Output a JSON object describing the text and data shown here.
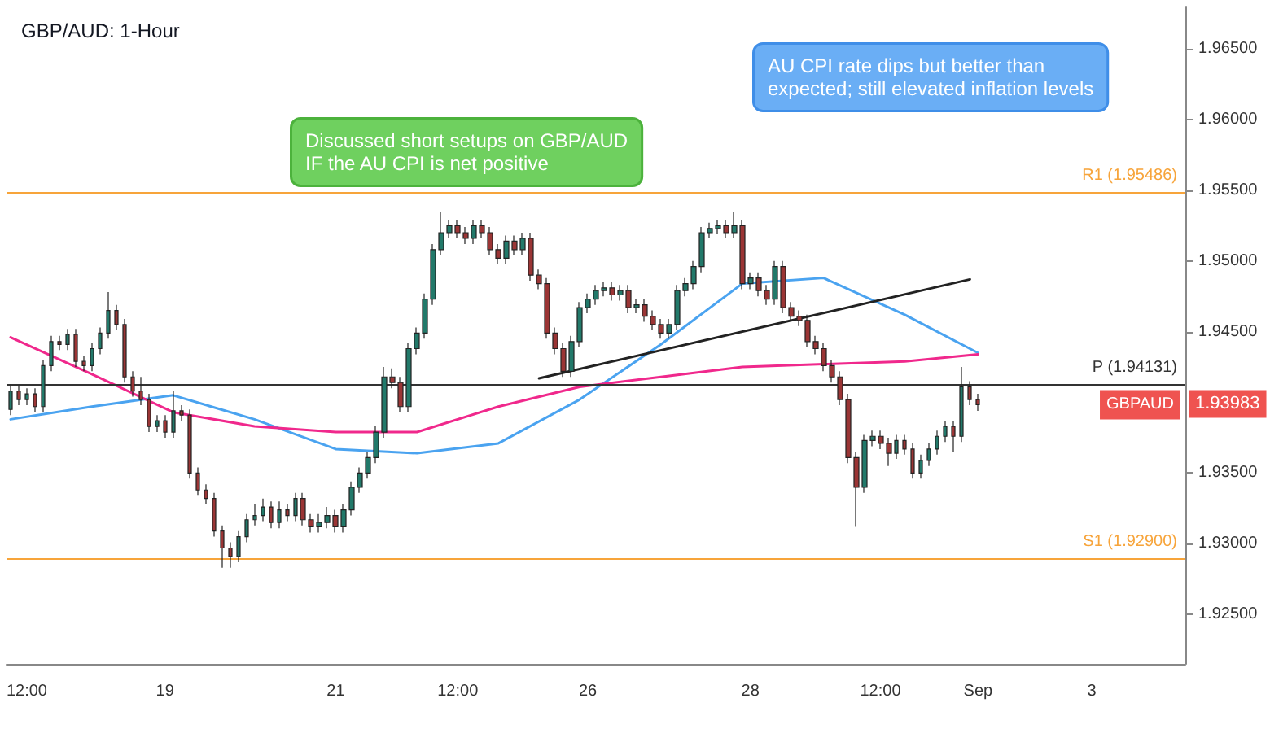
{
  "chart_data": {
    "type": "candlestick",
    "title": "GBP/AUD: 1-Hour",
    "categories": [
      null,
      null,
      "12:00",
      null,
      null,
      null,
      null,
      null,
      null,
      null,
      null,
      null,
      null,
      null,
      null,
      null,
      null,
      null,
      null,
      "19",
      null,
      null,
      null,
      null,
      null,
      null,
      null,
      null,
      null,
      null,
      null,
      null,
      null,
      null,
      null,
      null,
      null,
      null,
      null,
      null,
      "21",
      null,
      null,
      null,
      null,
      null,
      null,
      null,
      null,
      null,
      null,
      null,
      null,
      null,
      null,
      "12:00",
      null,
      null,
      null,
      null,
      null,
      null,
      null,
      null,
      null,
      null,
      null,
      null,
      null,
      null,
      null,
      "26",
      null,
      null,
      null,
      null,
      null,
      null,
      null,
      null,
      null,
      null,
      null,
      null,
      null,
      null,
      null,
      null,
      null,
      null,
      null,
      "28",
      null,
      null,
      null,
      null,
      null,
      null,
      null,
      null,
      null,
      null,
      null,
      null,
      null,
      null,
      null,
      "12:00",
      null,
      null,
      null,
      null,
      null,
      null,
      null,
      null,
      null,
      null,
      null,
      "Sep",
      null,
      null,
      null,
      null,
      null,
      null,
      null,
      null,
      null,
      null,
      null,
      null,
      null,
      "3",
      null,
      null,
      null,
      null,
      null,
      null,
      null,
      null,
      null,
      null,
      null
    ],
    "colors": [
      "#22796a",
      "#9b3535",
      "#22796a",
      "#9b3535",
      "#22796a",
      "#22796a",
      "#9b3535",
      "#22796a",
      "#9b3535",
      "#9b3535",
      "#22796a",
      "#22796a",
      "#22796a",
      "#9b3535",
      "#9b3535",
      "#9b3535",
      "#9b3535",
      "#9b3535",
      "#22796a",
      "#9b3535",
      "#22796a",
      "#9b3535",
      "#9b3535",
      "#9b3535",
      "#9b3535",
      "#9b3535",
      "#9b3535",
      "#9b3535",
      "#22796a",
      "#22796a",
      "#22796a",
      "#22796a",
      "#9b3535",
      "#22796a",
      "#9b3535",
      "#22796a",
      "#9b3535",
      "#9b3535",
      "#22796a",
      "#22796a",
      "#9b3535",
      "#22796a",
      "#22796a",
      "#22796a",
      "#22796a",
      "#22796a",
      "#22796a",
      "#9b3535",
      "#9b3535",
      "#22796a",
      "#22796a",
      "#22796a",
      "#22796a",
      "#22796a",
      "#22796a",
      "#9b3535",
      "#9b3535",
      "#22796a",
      "#9b3535",
      "#9b3535",
      "#9b3535",
      "#22796a",
      "#9b3535",
      "#22796a",
      "#9b3535",
      "#9b3535",
      "#9b3535",
      "#9b3535",
      "#9b3535",
      "#22796a",
      "#22796a",
      "#22796a",
      "#22796a",
      "#22796a",
      "#9b3535",
      "#22796a",
      "#9b3535",
      "#22796a",
      "#9b3535",
      "#9b3535",
      "#9b3535",
      "#22796a",
      "#22796a",
      "#22796a",
      "#22796a",
      "#22796a",
      "#22796a",
      "#22796a",
      "#9b3535",
      "#22796a",
      "#9b3535",
      "#22796a",
      "#9b3535",
      "#9b3535",
      "#22796a",
      "#9b3535",
      "#9b3535",
      "#9b3535",
      "#9b3535",
      "#9b3535",
      "#9b3535",
      "#9b3535",
      "#9b3535",
      "#9b3535",
      "#9b3535",
      "#22796a",
      "#22796a",
      "#9b3535",
      "#9b3535",
      "#22796a",
      "#9b3535",
      "#9b3535",
      "#22796a",
      "#22796a",
      "#22796a",
      "#22796a",
      "#9b3535",
      "#22796a",
      "#9b3535",
      "#9b3535",
      null,
      null,
      null,
      null,
      null,
      null,
      null,
      null,
      null,
      null,
      null,
      null,
      null,
      null,
      null,
      null,
      null,
      null,
      null,
      null,
      null,
      null,
      null,
      null,
      null
    ],
    "ohlc": [
      [
        1.9395,
        1.9412,
        1.9391,
        1.9408
      ],
      [
        1.9408,
        1.9412,
        1.9398,
        1.9402
      ],
      [
        1.9402,
        1.941,
        1.9398,
        1.9406
      ],
      [
        1.9406,
        1.941,
        1.9393,
        1.9397
      ],
      [
        1.9397,
        1.943,
        1.9393,
        1.9426
      ],
      [
        1.9426,
        1.9447,
        1.9422,
        1.9443
      ],
      [
        1.9443,
        1.9447,
        1.9437,
        1.9441
      ],
      [
        1.9441,
        1.9452,
        1.9437,
        1.9448
      ],
      [
        1.9448,
        1.9452,
        1.9425,
        1.9429
      ],
      [
        1.9429,
        1.9433,
        1.9422,
        1.9426
      ],
      [
        1.9426,
        1.9442,
        1.9422,
        1.9438
      ],
      [
        1.9438,
        1.9453,
        1.9434,
        1.9449
      ],
      [
        1.9449,
        1.9478,
        1.9445,
        1.9465
      ],
      [
        1.9465,
        1.9469,
        1.9451,
        1.9455
      ],
      [
        1.9455,
        1.9459,
        1.9414,
        1.9418
      ],
      [
        1.9418,
        1.9422,
        1.9404,
        1.9408
      ],
      [
        1.9408,
        1.9418,
        1.9398,
        1.9402
      ],
      [
        1.9402,
        1.9406,
        1.9379,
        1.9383
      ],
      [
        1.9383,
        1.9391,
        1.9379,
        1.9387
      ],
      [
        1.9387,
        1.9391,
        1.9375,
        1.9379
      ],
      [
        1.9379,
        1.9408,
        1.9375,
        1.9394
      ],
      [
        1.9394,
        1.9398,
        1.9387,
        1.9391
      ],
      [
        1.9391,
        1.9395,
        1.9346,
        1.935
      ],
      [
        1.935,
        1.9354,
        1.9334,
        1.9338
      ],
      [
        1.9338,
        1.9342,
        1.9328,
        1.9332
      ],
      [
        1.9332,
        1.9336,
        1.9305,
        1.9309
      ],
      [
        1.9309,
        1.9313,
        1.9283,
        1.9297
      ],
      [
        1.9297,
        1.9301,
        1.9283,
        1.9291
      ],
      [
        1.9291,
        1.9309,
        1.9287,
        1.9305
      ],
      [
        1.9305,
        1.9321,
        1.9301,
        1.9317
      ],
      [
        1.9317,
        1.9328,
        1.9313,
        1.932
      ],
      [
        1.932,
        1.9332,
        1.9316,
        1.9326
      ],
      [
        1.9326,
        1.933,
        1.9311,
        1.9315
      ],
      [
        1.9315,
        1.933,
        1.9311,
        1.9324
      ],
      [
        1.9324,
        1.9328,
        1.9316,
        1.932
      ],
      [
        1.932,
        1.9336,
        1.9316,
        1.9332
      ],
      [
        1.9332,
        1.9336,
        1.9313,
        1.9317
      ],
      [
        1.9317,
        1.9321,
        1.9308,
        1.9312
      ],
      [
        1.9312,
        1.9321,
        1.9308,
        1.9315
      ],
      [
        1.9315,
        1.9326,
        1.9311,
        1.932
      ],
      [
        1.932,
        1.9324,
        1.9308,
        1.9312
      ],
      [
        1.9312,
        1.9328,
        1.9308,
        1.9324
      ],
      [
        1.9324,
        1.9344,
        1.932,
        1.934
      ],
      [
        1.934,
        1.9354,
        1.9336,
        1.935
      ],
      [
        1.935,
        1.9365,
        1.9346,
        1.9361
      ],
      [
        1.9361,
        1.9383,
        1.9357,
        1.9379
      ],
      [
        1.9379,
        1.9425,
        1.9375,
        1.9418
      ],
      [
        1.9418,
        1.9424,
        1.941,
        1.9414
      ],
      [
        1.9414,
        1.9418,
        1.9393,
        1.9397
      ],
      [
        1.9397,
        1.9442,
        1.9393,
        1.9438
      ],
      [
        1.9438,
        1.9453,
        1.9434,
        1.9449
      ],
      [
        1.9449,
        1.9477,
        1.9445,
        1.9473
      ],
      [
        1.9473,
        1.9512,
        1.9469,
        1.9508
      ],
      [
        1.9508,
        1.9535,
        1.9504,
        1.952
      ],
      [
        1.952,
        1.9529,
        1.9516,
        1.9525
      ],
      [
        1.9525,
        1.9529,
        1.9516,
        1.952
      ],
      [
        1.952,
        1.9524,
        1.9512,
        1.9516
      ],
      [
        1.9516,
        1.9529,
        1.9512,
        1.9525
      ],
      [
        1.9525,
        1.9529,
        1.9516,
        1.952
      ],
      [
        1.952,
        1.9524,
        1.9504,
        1.9508
      ],
      [
        1.9508,
        1.9512,
        1.9498,
        1.9502
      ],
      [
        1.9502,
        1.9518,
        1.9498,
        1.9514
      ],
      [
        1.9514,
        1.9518,
        1.9504,
        1.9508
      ],
      [
        1.9508,
        1.952,
        1.9504,
        1.9516
      ],
      [
        1.9516,
        1.952,
        1.9486,
        1.949
      ],
      [
        1.949,
        1.9494,
        1.948,
        1.9484
      ],
      [
        1.9484,
        1.9488,
        1.9445,
        1.9449
      ],
      [
        1.9449,
        1.9453,
        1.9434,
        1.9438
      ],
      [
        1.9438,
        1.9442,
        1.9418,
        1.9422
      ],
      [
        1.9422,
        1.9447,
        1.9418,
        1.9443
      ],
      [
        1.9443,
        1.9471,
        1.9439,
        1.9467
      ],
      [
        1.9467,
        1.9477,
        1.9463,
        1.9473
      ],
      [
        1.9473,
        1.9483,
        1.9469,
        1.9479
      ],
      [
        1.9479,
        1.9485,
        1.9475,
        1.9481
      ],
      [
        1.9481,
        1.9485,
        1.9472,
        1.9476
      ],
      [
        1.9476,
        1.9483,
        1.9472,
        1.9479
      ],
      [
        1.9479,
        1.9483,
        1.9463,
        1.9467
      ],
      [
        1.9467,
        1.9473,
        1.9463,
        1.9469
      ],
      [
        1.9469,
        1.9473,
        1.9457,
        1.9461
      ],
      [
        1.9461,
        1.9465,
        1.9451,
        1.9455
      ],
      [
        1.9455,
        1.9459,
        1.9445,
        1.9449
      ],
      [
        1.9449,
        1.9459,
        1.9445,
        1.9455
      ],
      [
        1.9455,
        1.9483,
        1.9451,
        1.9479
      ],
      [
        1.9479,
        1.9488,
        1.9475,
        1.9484
      ],
      [
        1.9484,
        1.95,
        1.948,
        1.9496
      ],
      [
        1.9496,
        1.9524,
        1.9492,
        1.952
      ],
      [
        1.952,
        1.9527,
        1.9516,
        1.9523
      ],
      [
        1.9523,
        1.9529,
        1.9519,
        1.9525
      ],
      [
        1.9525,
        1.9529,
        1.9516,
        1.952
      ],
      [
        1.952,
        1.9535,
        1.9516,
        1.9525
      ],
      [
        1.9525,
        1.9529,
        1.948,
        1.9484
      ],
      [
        1.9484,
        1.9492,
        1.948,
        1.9488
      ],
      [
        1.9488,
        1.9492,
        1.9475,
        1.9479
      ],
      [
        1.9479,
        1.9483,
        1.9469,
        1.9473
      ],
      [
        1.9473,
        1.95,
        1.9469,
        1.9496
      ],
      [
        1.9496,
        1.95,
        1.9463,
        1.9467
      ],
      [
        1.9467,
        1.9471,
        1.9457,
        1.9461
      ],
      [
        1.9461,
        1.9465,
        1.9454,
        1.9458
      ],
      [
        1.9458,
        1.9462,
        1.9439,
        1.9443
      ],
      [
        1.9443,
        1.9447,
        1.9434,
        1.9438
      ],
      [
        1.9438,
        1.9442,
        1.9422,
        1.9426
      ],
      [
        1.9426,
        1.943,
        1.9414,
        1.9418
      ],
      [
        1.9418,
        1.9422,
        1.9398,
        1.9402
      ],
      [
        1.9402,
        1.9406,
        1.9357,
        1.9361
      ],
      [
        1.9361,
        1.9365,
        1.9312,
        1.934
      ],
      [
        1.934,
        1.9377,
        1.9336,
        1.9373
      ],
      [
        1.9373,
        1.938,
        1.9369,
        1.9376
      ],
      [
        1.9376,
        1.938,
        1.9367,
        1.9371
      ],
      [
        1.9371,
        1.9375,
        1.9355,
        1.9364
      ],
      [
        1.9364,
        1.9377,
        1.936,
        1.9373
      ],
      [
        1.9373,
        1.9377,
        1.9363,
        1.9367
      ],
      [
        1.9367,
        1.9371,
        1.9346,
        1.935
      ],
      [
        1.935,
        1.9363,
        1.9346,
        1.9359
      ],
      [
        1.9359,
        1.9371,
        1.9355,
        1.9367
      ],
      [
        1.9367,
        1.938,
        1.9363,
        1.9376
      ],
      [
        1.9376,
        1.9387,
        1.9372,
        1.9383
      ],
      [
        1.9383,
        1.9387,
        1.9365,
        1.9376
      ],
      [
        1.9376,
        1.9425,
        1.9372,
        1.9411
      ],
      [
        1.9411,
        1.9415,
        1.9398,
        1.9402
      ],
      [
        1.9402,
        1.9406,
        1.9394,
        1.93983
      ],
      null,
      null,
      null,
      null,
      null,
      null,
      null,
      null,
      null,
      null,
      null,
      null,
      null,
      null,
      null,
      null,
      null,
      null,
      null,
      null,
      null,
      null,
      null,
      null,
      null
    ],
    "series": [
      {
        "type": "line",
        "color": "#4aa3f0",
        "values": [
          1.9388,
          null,
          null,
          null,
          null,
          null,
          null,
          null,
          null,
          null,
          1.9397,
          null,
          null,
          null,
          null,
          null,
          null,
          null,
          null,
          null,
          1.9405,
          null,
          null,
          null,
          null,
          null,
          null,
          null,
          null,
          null,
          1.9388,
          null,
          null,
          null,
          null,
          null,
          null,
          null,
          null,
          null,
          1.9367,
          null,
          null,
          null,
          null,
          null,
          null,
          null,
          null,
          null,
          1.9364,
          null,
          null,
          null,
          null,
          null,
          null,
          null,
          null,
          null,
          1.9371,
          null,
          null,
          null,
          null,
          null,
          null,
          null,
          null,
          null,
          1.9402,
          null,
          null,
          null,
          null,
          null,
          null,
          null,
          null,
          null,
          1.9441,
          null,
          null,
          null,
          null,
          null,
          null,
          null,
          null,
          null,
          1.9484,
          null,
          null,
          null,
          null,
          null,
          null,
          null,
          null,
          null,
          1.9488,
          null,
          null,
          null,
          null,
          null,
          null,
          null,
          null,
          null,
          1.9462,
          null,
          null,
          null,
          null,
          null,
          null,
          null,
          null,
          1.9435,
          null,
          null,
          null,
          null,
          null,
          null,
          null,
          null,
          null,
          null,
          null,
          null,
          null,
          null,
          null,
          null,
          null,
          null,
          null,
          null,
          null,
          null,
          null,
          null,
          null
        ]
      },
      {
        "type": "line",
        "color": "#f0288c",
        "values": [
          1.9446,
          null,
          null,
          null,
          null,
          null,
          null,
          null,
          null,
          null,
          1.942,
          null,
          null,
          null,
          null,
          null,
          null,
          null,
          null,
          null,
          1.9393,
          null,
          null,
          null,
          null,
          null,
          null,
          null,
          null,
          null,
          1.9383,
          null,
          null,
          null,
          null,
          null,
          null,
          null,
          null,
          null,
          1.9379,
          null,
          null,
          null,
          null,
          null,
          null,
          null,
          null,
          null,
          1.9379,
          null,
          null,
          null,
          null,
          null,
          null,
          null,
          null,
          null,
          1.9397,
          null,
          null,
          null,
          null,
          null,
          null,
          null,
          null,
          null,
          1.9411,
          null,
          null,
          null,
          null,
          null,
          null,
          null,
          null,
          null,
          1.9418,
          null,
          null,
          null,
          null,
          null,
          null,
          null,
          null,
          null,
          1.9425,
          null,
          null,
          null,
          null,
          null,
          null,
          null,
          null,
          null,
          1.9427,
          null,
          null,
          null,
          null,
          null,
          null,
          null,
          null,
          null,
          1.9429,
          null,
          null,
          null,
          null,
          null,
          null,
          null,
          null,
          1.9434,
          null,
          null,
          null,
          null,
          null,
          null,
          null,
          null,
          null,
          null,
          null,
          null,
          null,
          null,
          null,
          null,
          null,
          null,
          null,
          null,
          null,
          null,
          null,
          null,
          null
        ]
      },
      {
        "type": "line",
        "color": "#222222",
        "values": [
          null,
          null,
          null,
          null,
          null,
          null,
          null,
          null,
          null,
          null,
          null,
          null,
          null,
          null,
          null,
          null,
          null,
          null,
          null,
          null,
          null,
          null,
          null,
          null,
          null,
          null,
          null,
          null,
          null,
          null,
          null,
          null,
          null,
          null,
          null,
          null,
          null,
          null,
          null,
          null,
          null,
          null,
          null,
          null,
          null,
          null,
          null,
          null,
          null,
          null,
          null,
          null,
          null,
          null,
          null,
          null,
          null,
          null,
          null,
          null,
          null,
          null,
          null,
          null,
          null,
          1.9417,
          null,
          null,
          null,
          null,
          null,
          null,
          null,
          null,
          null,
          null,
          null,
          null,
          null,
          null,
          null,
          null,
          null,
          null,
          null,
          null,
          null,
          null,
          null,
          null,
          null,
          null,
          null,
          null,
          null,
          null,
          null,
          null,
          null,
          null,
          null,
          null,
          null,
          null,
          null,
          null,
          null,
          null,
          null,
          null,
          null,
          null,
          null,
          null,
          null,
          null,
          null,
          null,
          1.9487,
          null,
          null,
          null,
          null,
          null,
          null,
          null,
          null,
          null,
          null,
          null,
          null,
          null,
          null,
          null,
          null,
          null,
          null,
          null,
          null,
          null,
          null,
          null,
          null,
          null,
          null
        ]
      }
    ],
    "ylim": [
      1.9215,
      1.968
    ],
    "yticks": [
      {
        "value": 1.925,
        "label": "1.92500"
      },
      {
        "value": 1.93,
        "label": "1.93000"
      },
      {
        "value": 1.935,
        "label": "1.93500"
      },
      {
        "value": 1.945,
        "label": "1.94500"
      },
      {
        "value": 1.95,
        "label": "1.95000"
      },
      {
        "value": 1.955,
        "label": "1.95500"
      },
      {
        "value": 1.96,
        "label": "1.96000"
      },
      {
        "value": 1.965,
        "label": "1.96500"
      }
    ],
    "ref_lines": [
      {
        "axis": "y",
        "value": 1.95486,
        "label": "R1 (1.95486)",
        "color": "#f7a43a"
      },
      {
        "axis": "y",
        "value": 1.94131,
        "label": "P (1.94131)",
        "color": "#333333"
      },
      {
        "axis": "y",
        "value": 1.929,
        "label": "S1 (1.92900)",
        "color": "#f7a43a"
      }
    ],
    "annotations": [
      "Discussed short setups on GBP/AUD\nIF the AU CPI is net positive",
      "AU CPI rate dips but better than\nexpected; still elevated inflation levels",
      "GBPAUD",
      "1.93983"
    ],
    "grid": false,
    "marker": "none",
    "line_style": "solid"
  }
}
